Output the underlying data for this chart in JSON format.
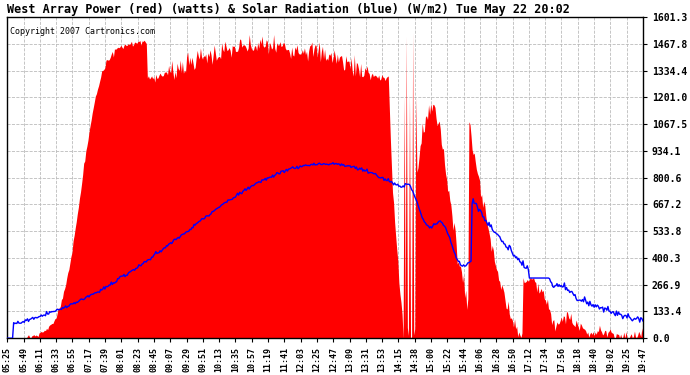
{
  "title": "West Array Power (red) (watts) & Solar Radiation (blue) (W/m2) Tue May 22 20:02",
  "copyright": "Copyright 2007 Cartronics.com",
  "y_max": 1601.3,
  "y_min": 0.0,
  "y_ticks": [
    0.0,
    133.4,
    266.9,
    400.3,
    533.8,
    667.2,
    800.6,
    934.1,
    1067.5,
    1201.0,
    1334.4,
    1467.8,
    1601.3
  ],
  "bg_color": "#ffffff",
  "plot_bg": "#ffffff",
  "grid_color": "#bbbbbb",
  "red_fill_color": "#ff0000",
  "blue_line_color": "#0000ff",
  "x_labels": [
    "05:25",
    "05:49",
    "06:11",
    "06:33",
    "06:55",
    "07:17",
    "07:39",
    "08:01",
    "08:23",
    "08:45",
    "09:07",
    "09:29",
    "09:51",
    "10:13",
    "10:35",
    "10:57",
    "11:19",
    "11:41",
    "12:03",
    "12:25",
    "12:47",
    "13:09",
    "13:31",
    "13:53",
    "14:15",
    "14:38",
    "15:00",
    "15:22",
    "15:44",
    "16:06",
    "16:28",
    "16:50",
    "17:12",
    "17:34",
    "17:56",
    "18:18",
    "18:40",
    "19:02",
    "19:25",
    "19:47"
  ],
  "n_points": 600
}
